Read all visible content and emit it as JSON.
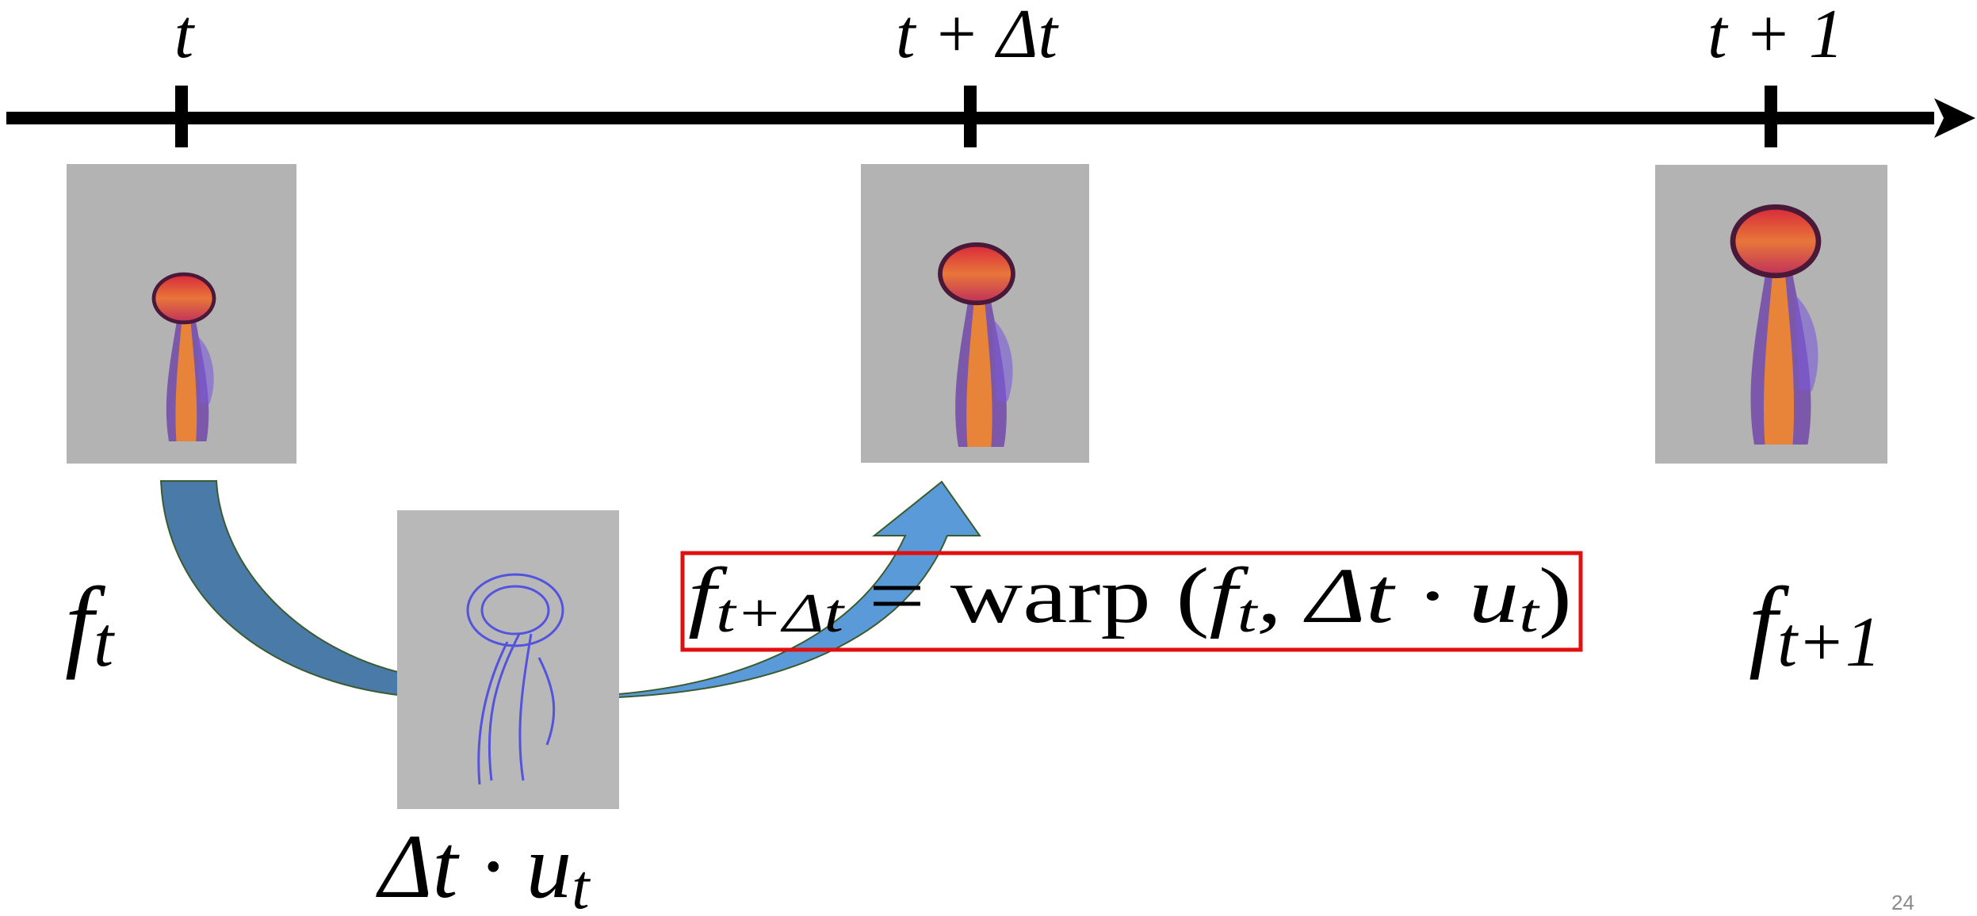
{
  "timeline": {
    "ticks": [
      "t",
      "t + Δt",
      "t + 1"
    ]
  },
  "frame_labels": [
    {
      "text": "f",
      "sub": "t"
    },
    {
      "text": "f",
      "sub": "t+1"
    }
  ],
  "equation": {
    "parts": [
      {
        "text": "f",
        "sub": "t+Δt"
      },
      {
        "text": " = warp ("
      },
      {
        "text": "f",
        "sub": "t"
      },
      {
        "text": ", Δt · u",
        "sub": "t"
      },
      {
        "text": ")"
      }
    ]
  },
  "velocity_label": {
    "text": "Δt · u",
    "sub": "t"
  },
  "page_number": "24"
}
